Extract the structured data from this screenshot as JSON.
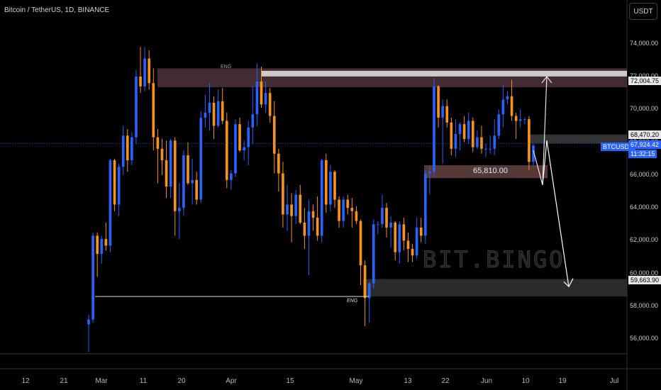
{
  "header": {
    "title": "Bitcoin / TetherUS, 1D, BINANCE",
    "unit_button": "USDT"
  },
  "watermark": "BIT.BINGO",
  "price_tags": {
    "p72005": "72,004.75",
    "p68470": "68,470.20",
    "symbol": "BTCUSDT",
    "current": "67,924.42",
    "countdown": "11:32:15",
    "p59664": "59,663.90"
  },
  "annotations": {
    "eng_top": "ENG",
    "eng_bottom": "ENG",
    "support_label": "65,810.00"
  },
  "colors": {
    "up": "#2962ff",
    "down": "#f7931a",
    "background": "#000000",
    "zone": "#5a3a44",
    "zone_light": "#e6e6e6"
  },
  "chart_data": {
    "type": "candlestick",
    "symbol": "BTCUSDT",
    "timeframe": "1D",
    "exchange": "BINANCE",
    "y_axis": {
      "ticks": [
        "74,000.00",
        "72,000.00",
        "70,000.00",
        "68,000.00",
        "66,000.00",
        "64,000.00",
        "62,000.00",
        "60,000.00",
        "58,000.00",
        "56,000.00"
      ],
      "range": [
        54200,
        75800
      ]
    },
    "x_axis": {
      "ticks": [
        "12",
        "21",
        "Mar",
        "11",
        "20",
        "Apr",
        "15",
        "May",
        "13",
        "22",
        "Jun",
        "10",
        "19",
        "Jul"
      ]
    },
    "current_price": 67924.42,
    "candles": [
      [
        56900,
        57500,
        55200,
        57200
      ],
      [
        57200,
        62500,
        57000,
        62300
      ],
      [
        62300,
        62500,
        59800,
        61200
      ],
      [
        61200,
        62300,
        60600,
        62100
      ],
      [
        62100,
        63100,
        61400,
        61700
      ],
      [
        61700,
        67000,
        61300,
        66900
      ],
      [
        66900,
        67000,
        63800,
        64200
      ],
      [
        64200,
        66700,
        63500,
        66500
      ],
      [
        66500,
        69000,
        66000,
        68400
      ],
      [
        68400,
        68800,
        66200,
        66900
      ],
      [
        66900,
        68600,
        66600,
        68300
      ],
      [
        68300,
        72400,
        67900,
        72000
      ],
      [
        72000,
        73800,
        71000,
        71400
      ],
      [
        71400,
        73800,
        71100,
        73100
      ],
      [
        73100,
        73600,
        71200,
        71600
      ],
      [
        71600,
        72500,
        67500,
        68300
      ],
      [
        68300,
        68800,
        65500,
        67600
      ],
      [
        67600,
        68200,
        66000,
        66900
      ],
      [
        66900,
        68100,
        64600,
        65300
      ],
      [
        65300,
        68200,
        64600,
        68100
      ],
      [
        68100,
        68300,
        62300,
        63800
      ],
      [
        63800,
        65500,
        62100,
        64000
      ],
      [
        64000,
        67500,
        63500,
        67200
      ],
      [
        67200,
        68000,
        65400,
        65500
      ],
      [
        65500,
        67000,
        64200,
        65700
      ],
      [
        65700,
        66200,
        64200,
        64500
      ],
      [
        64500,
        69900,
        64300,
        69500
      ],
      [
        69500,
        70900,
        68900,
        69800
      ],
      [
        69800,
        71600,
        68700,
        70400
      ],
      [
        70400,
        70800,
        68200,
        69000
      ],
      [
        69000,
        71200,
        68900,
        70500
      ],
      [
        70500,
        71300,
        69100,
        69300
      ],
      [
        69300,
        69800,
        65200,
        65700
      ],
      [
        65700,
        66300,
        65100,
        66100
      ],
      [
        66100,
        69400,
        65900,
        69100
      ],
      [
        69100,
        69500,
        67400,
        67500
      ],
      [
        67500,
        68100,
        66900,
        67700
      ],
      [
        67700,
        69300,
        66600,
        68900
      ],
      [
        68900,
        71400,
        67900,
        69700
      ],
      [
        69700,
        72800,
        69000,
        71700
      ],
      [
        71700,
        72600,
        70100,
        70300
      ],
      [
        70300,
        71700,
        69800,
        71000
      ],
      [
        71000,
        71300,
        69200,
        69600
      ],
      [
        69600,
        70500,
        66100,
        67300
      ],
      [
        67300,
        67600,
        65000,
        66100
      ],
      [
        66100,
        66800,
        62800,
        63600
      ],
      [
        63600,
        65400,
        62600,
        64200
      ],
      [
        64200,
        64900,
        61900,
        63500
      ],
      [
        63500,
        65100,
        63000,
        64800
      ],
      [
        64800,
        65400,
        63000,
        63100
      ],
      [
        63100,
        64000,
        61500,
        62300
      ],
      [
        62300,
        64500,
        59900,
        63800
      ],
      [
        63800,
        64200,
        62600,
        63400
      ],
      [
        63400,
        64700,
        62000,
        62300
      ],
      [
        62300,
        67000,
        61900,
        66900
      ],
      [
        66900,
        67300,
        63700,
        64200
      ],
      [
        64200,
        66600,
        63800,
        66200
      ],
      [
        66200,
        66300,
        64000,
        64500
      ],
      [
        64500,
        64700,
        62800,
        63200
      ],
      [
        63200,
        64700,
        62800,
        64500
      ],
      [
        64500,
        64800,
        63600,
        64000
      ],
      [
        64000,
        64600,
        62800,
        63800
      ],
      [
        63800,
        64100,
        63000,
        63200
      ],
      [
        63200,
        63300,
        59300,
        60500
      ],
      [
        60500,
        60800,
        56800,
        58500
      ],
      [
        58500,
        59500,
        57000,
        59400
      ],
      [
        59400,
        63300,
        59100,
        63000
      ],
      [
        63000,
        63200,
        62400,
        63000
      ],
      [
        63000,
        64800,
        62800,
        64000
      ],
      [
        64000,
        64300,
        62200,
        62800
      ],
      [
        62800,
        63500,
        61600,
        63100
      ],
      [
        63100,
        63200,
        60800,
        61300
      ],
      [
        61300,
        63200,
        60600,
        63000
      ],
      [
        63000,
        63400,
        61400,
        62000
      ],
      [
        62000,
        62500,
        60700,
        61500
      ],
      [
        61500,
        61800,
        60700,
        61100
      ],
      [
        61100,
        63400,
        60900,
        62800
      ],
      [
        62800,
        63400,
        61900,
        62300
      ],
      [
        62300,
        66300,
        61800,
        66100
      ],
      [
        66100,
        66500,
        64800,
        66200
      ],
      [
        66200,
        71900,
        65900,
        71400
      ],
      [
        71400,
        71500,
        68900,
        69500
      ],
      [
        69500,
        70600,
        66700,
        70200
      ],
      [
        70200,
        70600,
        68900,
        69200
      ],
      [
        69200,
        69500,
        67200,
        67600
      ],
      [
        67600,
        69400,
        67100,
        68500
      ],
      [
        68500,
        69200,
        67500,
        69100
      ],
      [
        69100,
        69600,
        68000,
        68200
      ],
      [
        68200,
        69800,
        67900,
        69300
      ],
      [
        69300,
        69500,
        67400,
        67700
      ],
      [
        67700,
        68700,
        67600,
        68300
      ],
      [
        68300,
        69000,
        67300,
        67600
      ],
      [
        67600,
        67900,
        67100,
        67600
      ],
      [
        67600,
        68400,
        67300,
        67600
      ],
      [
        67600,
        69400,
        67200,
        68400
      ],
      [
        68400,
        70000,
        68200,
        69700
      ],
      [
        69700,
        71500,
        68900,
        70600
      ],
      [
        70600,
        71100,
        70300,
        70800
      ],
      [
        70800,
        71800,
        69300,
        69600
      ],
      [
        69600,
        69800,
        68200,
        69300
      ],
      [
        69300,
        70000,
        68900,
        69400
      ],
      [
        69400,
        69500,
        69100,
        69400
      ],
      [
        69400,
        69600,
        66300,
        66800
      ],
      [
        66800,
        67900,
        66600,
        67800
      ]
    ],
    "zones": [
      {
        "name": "resistance",
        "from": 71350,
        "to": 72500,
        "color": "#5a3a44"
      },
      {
        "name": "resistance-edge",
        "from": 72005,
        "to": 72350,
        "color": "#e6e6e6"
      },
      {
        "name": "support",
        "from": 65810,
        "to": 66600,
        "color": "#a06464"
      },
      {
        "name": "support-lower",
        "from": 58600,
        "to": 59664,
        "color": "#3a3a3a"
      },
      {
        "name": "range",
        "from": 67924,
        "to": 68470,
        "color": "#444444"
      }
    ],
    "levels": [
      58600,
      55200
    ]
  }
}
